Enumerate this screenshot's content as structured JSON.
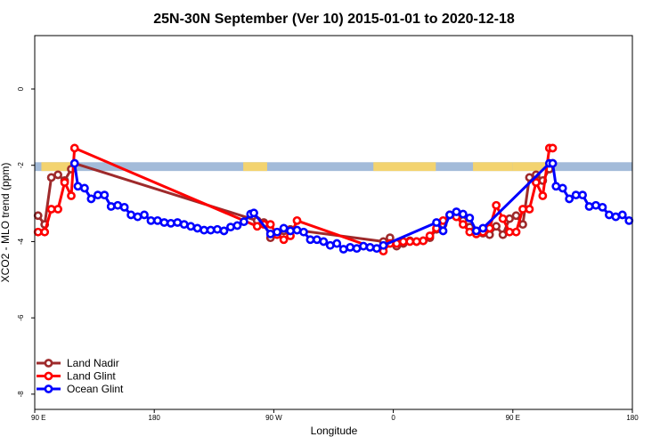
{
  "chart_data": {
    "type": "line",
    "title": "25N-30N September (Ver 10)   2015-01-01 to 2020-12-18",
    "xlabel": "Longitude",
    "ylabel": "XCO2 - MLO trend (ppm)",
    "xlim": [
      90,
      540
    ],
    "ylim": [
      -8.4,
      1.4
    ],
    "x_ticks": [
      {
        "value": 90,
        "label": "90 E"
      },
      {
        "value": 180,
        "label": "180"
      },
      {
        "value": 270,
        "label": "90 W"
      },
      {
        "value": 360,
        "label": "0"
      },
      {
        "value": 450,
        "label": "90 E"
      },
      {
        "value": 540,
        "label": "180"
      }
    ],
    "y_ticks": [
      {
        "value": 0,
        "label": "0"
      },
      {
        "value": -2,
        "label": "-2"
      },
      {
        "value": -4,
        "label": "-4"
      },
      {
        "value": -6,
        "label": "-6"
      },
      {
        "value": -8,
        "label": "-8"
      }
    ],
    "grid": false,
    "legend_position": "bottom-left",
    "land_mask": {
      "y_top": -1.92,
      "y_bottom": -2.15,
      "ocean_color": "#a3bbd9",
      "land_color": "#f3d36f",
      "land_ranges": [
        [
          95,
          121
        ],
        [
          247,
          265
        ],
        [
          345,
          392
        ],
        [
          420,
          450
        ],
        [
          450,
          475
        ]
      ]
    },
    "series": [
      {
        "name": "Land Nadir",
        "color": "#9e2a2b",
        "x": [
          92.5,
          97.5,
          102.5,
          107.5,
          112.5,
          117.5,
          120,
          257.5,
          262.5,
          267.5,
          272.5,
          277.5,
          282.5,
          352.5,
          357.5,
          362.5,
          367.5,
          372.5,
          377.5,
          382.5,
          387.5,
          392.5,
          397.5,
          402.5,
          407.5,
          412.5,
          417.5,
          422.5,
          427.5,
          432.5,
          437.5,
          442.5,
          447.5,
          452.5,
          457.5,
          462.5,
          467.5,
          472.5,
          477.5,
          480
        ],
        "y": [
          -3.32,
          -3.55,
          -2.32,
          -2.25,
          -2.4,
          -2.1,
          -1.95,
          -3.45,
          -3.5,
          -3.9,
          -3.78,
          -3.72,
          -3.68,
          -4.0,
          -3.9,
          -4.12,
          -4.05,
          -3.98,
          -4.0,
          -3.98,
          -3.9,
          -3.68,
          -3.55,
          -3.3,
          -3.35,
          -3.45,
          -3.62,
          -3.72,
          -3.78,
          -3.82,
          -3.6,
          -3.82,
          -3.4,
          -3.32,
          -3.55,
          -2.32,
          -2.25,
          -2.4,
          -2.1,
          -1.95
        ]
      },
      {
        "name": "Land Glint",
        "color": "#ff0000",
        "x": [
          92.5,
          97.5,
          102.5,
          107.5,
          112.5,
          117.5,
          120,
          257.5,
          262.5,
          267.5,
          272.5,
          277.5,
          282.5,
          287.5,
          352.5,
          357.5,
          362.5,
          367.5,
          372.5,
          377.5,
          382.5,
          387.5,
          392.5,
          397.5,
          402.5,
          407.5,
          412.5,
          417.5,
          422.5,
          427.5,
          432.5,
          437.5,
          442.5,
          447.5,
          452.5,
          457.5,
          462.5,
          467.5,
          472.5,
          477.5,
          480
        ],
        "y": [
          -3.75,
          -3.75,
          -3.15,
          -3.15,
          -2.45,
          -2.8,
          -1.55,
          -3.6,
          -3.55,
          -3.55,
          -3.82,
          -3.95,
          -3.85,
          -3.45,
          -4.25,
          -4.05,
          -4.05,
          -4.0,
          -4.0,
          -4.0,
          -3.98,
          -3.85,
          -3.65,
          -3.45,
          -3.3,
          -3.35,
          -3.55,
          -3.75,
          -3.8,
          -3.75,
          -3.65,
          -3.05,
          -3.4,
          -3.75,
          -3.75,
          -3.15,
          -3.15,
          -2.45,
          -2.8,
          -1.55,
          -1.55
        ]
      },
      {
        "name": "Ocean Glint",
        "color": "#0000ff",
        "x": [
          120,
          122.5,
          127.5,
          132.5,
          137.5,
          142.5,
          147.5,
          152.5,
          157.5,
          162.5,
          167.5,
          172.5,
          177.5,
          182.5,
          187.5,
          192.5,
          197.5,
          202.5,
          207.5,
          212.5,
          217.5,
          222.5,
          227.5,
          232.5,
          237.5,
          242.5,
          247.5,
          252.5,
          255,
          267.5,
          272.5,
          277.5,
          282.5,
          287.5,
          292.5,
          297.5,
          302.5,
          307.5,
          312.5,
          317.5,
          322.5,
          327.5,
          332.5,
          337.5,
          342.5,
          347.5,
          352.5,
          392.5,
          397.5,
          402.5,
          407.5,
          412.5,
          417.5,
          422.5,
          427.5,
          477.5,
          480,
          482.5,
          487.5,
          492.5,
          497.5,
          502.5,
          507.5,
          512.5,
          517.5,
          522.5,
          527.5,
          532.5,
          537.5
        ],
        "y": [
          -1.95,
          -2.55,
          -2.6,
          -2.88,
          -2.78,
          -2.78,
          -3.08,
          -3.05,
          -3.1,
          -3.3,
          -3.35,
          -3.3,
          -3.45,
          -3.45,
          -3.5,
          -3.52,
          -3.5,
          -3.55,
          -3.6,
          -3.65,
          -3.7,
          -3.7,
          -3.68,
          -3.72,
          -3.62,
          -3.58,
          -3.48,
          -3.28,
          -3.25,
          -3.8,
          -3.75,
          -3.65,
          -3.72,
          -3.7,
          -3.75,
          -3.95,
          -3.95,
          -4.0,
          -4.1,
          -4.05,
          -4.2,
          -4.15,
          -4.18,
          -4.12,
          -4.15,
          -4.18,
          -4.1,
          -3.5,
          -3.72,
          -3.3,
          -3.22,
          -3.28,
          -3.38,
          -3.72,
          -3.65,
          -1.95,
          -1.95,
          -2.55,
          -2.6,
          -2.88,
          -2.78,
          -2.78,
          -3.08,
          -3.05,
          -3.1,
          -3.3,
          -3.35,
          -3.3,
          -3.45
        ]
      }
    ]
  }
}
